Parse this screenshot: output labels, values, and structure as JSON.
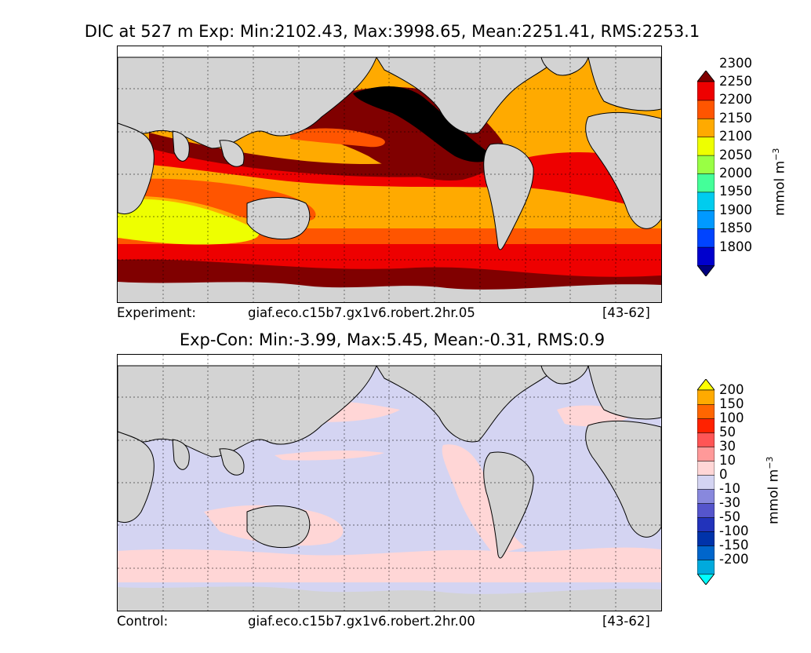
{
  "top": {
    "title": "DIC at 527 m Exp: Min:2102.43, Max:3998.65, Mean:2251.41, RMS:2253.1",
    "caption_label": "Experiment:",
    "caption_case": "giaf.eco.c15b7.gx1v6.robert.2hr.05",
    "caption_years": "[43-62]",
    "colorbar": {
      "levels": [
        "1800",
        "1850",
        "1900",
        "1950",
        "2000",
        "2050",
        "2100",
        "2150",
        "2200",
        "2250",
        "2300"
      ],
      "colors": [
        "#000080",
        "#0000cd",
        "#0044ff",
        "#0099ff",
        "#00ccee",
        "#44ff99",
        "#99ff44",
        "#eeff00",
        "#ffaa00",
        "#ff5500",
        "#ee0000",
        "#800000"
      ],
      "unit": "mmol m",
      "unit_exp": "−3"
    }
  },
  "bottom": {
    "title": "Exp-Con: Min:-3.99, Max:5.45, Mean:-0.31, RMS:0.9",
    "caption_label": "Control:",
    "caption_case": "giaf.eco.c15b7.gx1v6.robert.2hr.00",
    "caption_years": "[43-62]",
    "colorbar": {
      "levels": [
        "-200",
        "-150",
        "-100",
        "-50",
        "-30",
        "-10",
        "0",
        "10",
        "30",
        "50",
        "100",
        "150",
        "200"
      ],
      "colors": [
        "#00ffff",
        "#00aadd",
        "#0066cc",
        "#0033aa",
        "#2233bb",
        "#5555cc",
        "#8888dd",
        "#d4d4f2",
        "#ffd6d6",
        "#ff9999",
        "#ff5555",
        "#ff2200",
        "#ff6600",
        "#ffaa00",
        "#ffff00"
      ],
      "unit": "mmol m",
      "unit_exp": "−3"
    }
  }
}
